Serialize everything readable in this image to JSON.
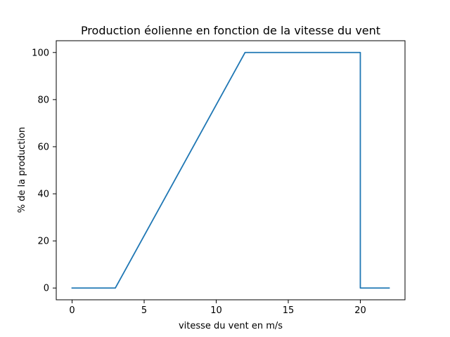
{
  "chart_data": {
    "type": "line",
    "title": "Production éolienne en fonction de la vitesse du vent",
    "xlabel": "vitesse du vent en m/s",
    "ylabel": "% de la production",
    "xlim": [
      -1.1,
      23.1
    ],
    "ylim": [
      -5,
      105
    ],
    "xticks": [
      0,
      5,
      10,
      15,
      20
    ],
    "yticks": [
      0,
      20,
      40,
      60,
      80,
      100
    ],
    "grid": false,
    "series": [
      {
        "color": "#1f77b4",
        "points": [
          [
            0,
            0
          ],
          [
            3,
            0
          ],
          [
            12,
            100
          ],
          [
            20,
            100
          ],
          [
            20,
            0
          ],
          [
            22,
            0
          ]
        ]
      }
    ]
  }
}
